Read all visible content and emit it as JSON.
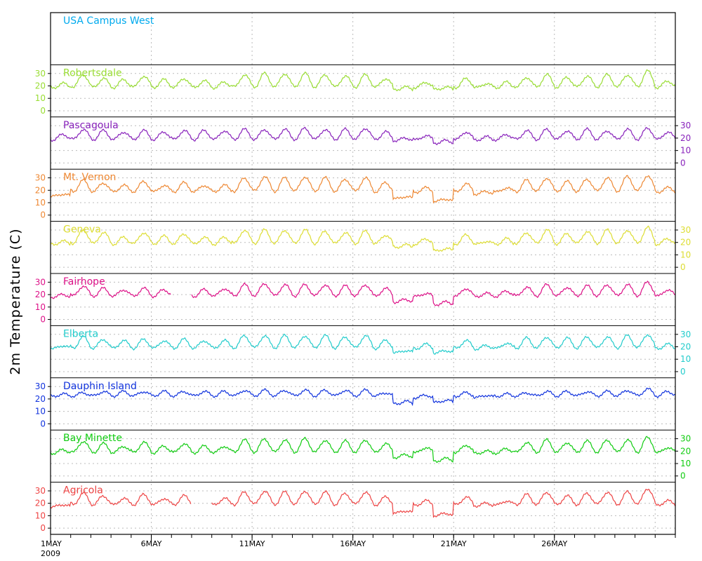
{
  "chart_data": {
    "type": "line",
    "title": "",
    "ylabel": "2m Temperature (C)",
    "xlabel": "",
    "x_ticks": [
      "1MAY",
      "6MAY",
      "11MAY",
      "16MAY",
      "21MAY",
      "26MAY"
    ],
    "x_year_label": "2009",
    "x_range": [
      "2009-05-01",
      "2009-05-31"
    ],
    "ylim": [
      -5,
      37
    ],
    "y_ticks": [
      "0",
      "10",
      "20",
      "30"
    ],
    "grid": true,
    "panels": [
      {
        "name": "USA Campus West",
        "color": "#00aaee",
        "axis_side": "none",
        "values": []
      },
      {
        "name": "Robertsdale",
        "color": "#99dd33",
        "axis_side": "left",
        "values": [
          22,
          29,
          26,
          25,
          28,
          25,
          26,
          24,
          23,
          29,
          30,
          30,
          30,
          29,
          28,
          29,
          26,
          19,
          23,
          19,
          26,
          22,
          23,
          27,
          29,
          27,
          28,
          29,
          29,
          32,
          24
        ]
      },
      {
        "name": "Pascagoula",
        "color": "#8822bb",
        "axis_side": "right",
        "values": [
          23,
          27,
          26,
          25,
          26,
          25,
          26,
          26,
          26,
          27,
          27,
          27,
          28,
          27,
          27,
          28,
          25,
          20,
          22,
          18,
          25,
          21,
          23,
          26,
          27,
          26,
          27,
          26,
          27,
          28,
          25
        ]
      },
      {
        "name": "Mt. Vernon",
        "color": "#ee8833",
        "axis_side": "left",
        "values": [
          17,
          28,
          26,
          24,
          27,
          24,
          26,
          24,
          24,
          30,
          31,
          30,
          31,
          30,
          29,
          30,
          26,
          15,
          22,
          13,
          25,
          19,
          22,
          28,
          30,
          27,
          29,
          30,
          31,
          32,
          22
        ]
      },
      {
        "name": "Geneva",
        "color": "#dddd33",
        "axis_side": "right",
        "values": [
          21,
          30,
          28,
          24,
          28,
          25,
          27,
          24,
          24,
          30,
          30,
          30,
          30,
          29,
          28,
          29,
          26,
          18,
          23,
          15,
          26,
          21,
          23,
          28,
          30,
          27,
          29,
          30,
          30,
          32,
          23
        ]
      },
      {
        "name": "Fairhope",
        "color": "#dd1188",
        "axis_side": "left",
        "values": [
          20,
          27,
          25,
          24,
          25,
          24,
          null,
          24,
          25,
          28,
          29,
          28,
          28,
          28,
          27,
          28,
          25,
          16,
          21,
          14,
          25,
          21,
          23,
          26,
          28,
          26,
          27,
          28,
          28,
          30,
          24
        ]
      },
      {
        "name": "Elberta",
        "color": "#22cccc",
        "axis_side": "right",
        "values": [
          21,
          28,
          26,
          25,
          26,
          25,
          26,
          25,
          25,
          29,
          29,
          29,
          29,
          29,
          28,
          29,
          25,
          17,
          22,
          17,
          25,
          21,
          23,
          27,
          28,
          27,
          28,
          28,
          29,
          30,
          22
        ]
      },
      {
        "name": "Dauphin Island",
        "color": "#1133dd",
        "axis_side": "left",
        "values": [
          24,
          25,
          26,
          26,
          26,
          26,
          26,
          26,
          26,
          27,
          27,
          27,
          27,
          27,
          27,
          27,
          25,
          18,
          23,
          19,
          25,
          23,
          24,
          25,
          26,
          26,
          26,
          26,
          27,
          28,
          26
        ]
      },
      {
        "name": "Bay Minette",
        "color": "#11cc11",
        "axis_side": "right",
        "values": [
          21,
          28,
          26,
          24,
          27,
          24,
          26,
          24,
          24,
          29,
          30,
          29,
          30,
          29,
          28,
          29,
          26,
          17,
          23,
          14,
          25,
          20,
          22,
          27,
          29,
          27,
          28,
          29,
          29,
          31,
          23
        ]
      },
      {
        "name": "Agricola",
        "color": "#ee4444",
        "axis_side": "left",
        "values": [
          19,
          28,
          26,
          24,
          27,
          24,
          26,
          null,
          24,
          29,
          30,
          29,
          30,
          29,
          28,
          29,
          25,
          14,
          22,
          12,
          25,
          20,
          22,
          27,
          29,
          26,
          28,
          29,
          29,
          32,
          22
        ]
      }
    ]
  }
}
